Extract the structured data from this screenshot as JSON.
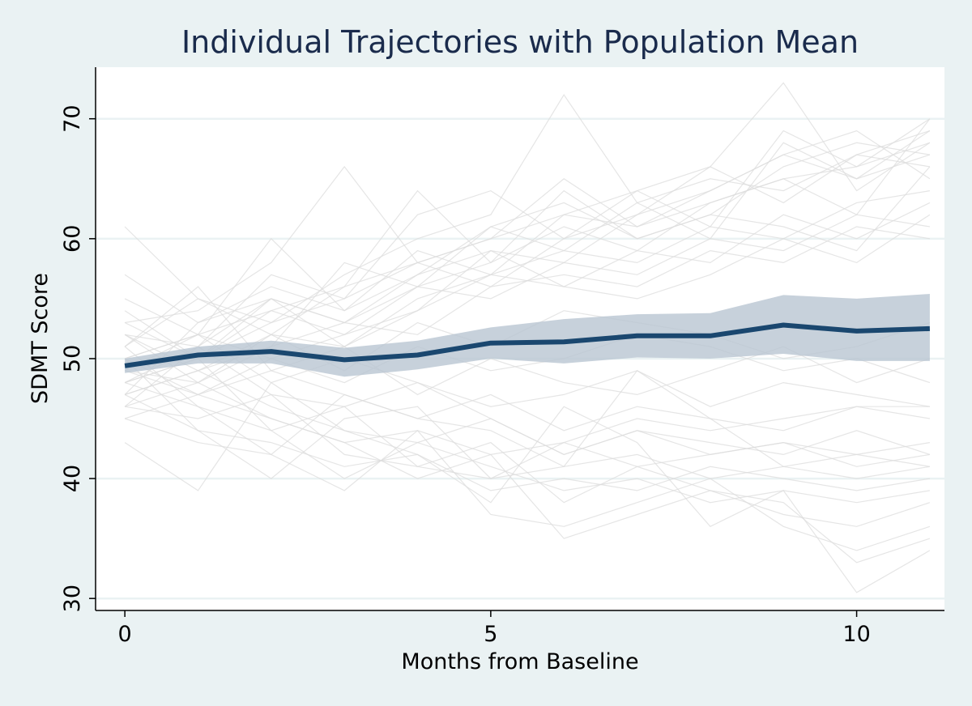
{
  "chart_data": {
    "type": "line",
    "title": "Individual Trajectories with Population Mean",
    "xlabel": "Months from Baseline",
    "ylabel": "SDMT Score",
    "xlim": [
      -0.4,
      11.2
    ],
    "ylim": [
      29.0,
      74.3
    ],
    "x_ticks": [
      0,
      5,
      10
    ],
    "y_ticks": [
      30,
      40,
      50,
      60,
      70
    ],
    "grid": "horizontal",
    "colors": {
      "background": "#eaf2f3",
      "plot_area": "#ffffff",
      "grid": "#eaf2f3",
      "individual": "#dcdcdc",
      "mean": "#1a476f",
      "ci_band": "#b9c6d2",
      "title": "#1a2b4c"
    },
    "x": [
      0,
      1,
      2,
      3,
      4,
      5,
      6,
      7,
      8,
      9,
      10,
      11
    ],
    "mean_series": {
      "values": [
        49.4,
        50.3,
        50.6,
        49.9,
        50.3,
        51.3,
        51.4,
        51.9,
        51.9,
        52.8,
        52.3,
        52.5
      ],
      "ci_lower": [
        48.8,
        49.6,
        49.6,
        48.5,
        49.1,
        50.0,
        49.6,
        50.1,
        50.0,
        50.4,
        49.8,
        49.8
      ],
      "ci_upper": [
        50.0,
        51.0,
        51.5,
        50.9,
        51.5,
        52.6,
        53.3,
        53.7,
        53.8,
        55.3,
        55.0,
        55.4
      ]
    },
    "individual_series": [
      {
        "values": [
          50,
          52,
          54,
          56,
          58,
          60,
          62,
          61,
          63,
          65,
          66,
          68
        ]
      },
      {
        "values": [
          48,
          50,
          55,
          53,
          57,
          59,
          58,
          62,
          64,
          67,
          65,
          69
        ]
      },
      {
        "values": [
          52,
          49,
          51,
          58,
          56,
          61,
          63,
          60,
          62,
          66,
          68,
          67
        ]
      },
      {
        "values": [
          47,
          53,
          56,
          54,
          59,
          57,
          62,
          64,
          61,
          69,
          66,
          70
        ]
      },
      {
        "values": [
          51,
          55,
          53,
          57,
          60,
          62,
          72,
          63,
          65,
          64,
          67,
          66
        ]
      },
      {
        "values": [
          46,
          51,
          57,
          55,
          62,
          64,
          60,
          62,
          66,
          73,
          64,
          68
        ]
      },
      {
        "values": [
          53,
          54,
          58,
          66,
          58,
          60,
          65,
          61,
          64,
          67,
          69,
          65
        ]
      },
      {
        "values": [
          49,
          48,
          52,
          56,
          64,
          58,
          61,
          59,
          63,
          65,
          62,
          70
        ]
      },
      {
        "values": [
          50,
          52,
          60,
          54,
          57,
          61,
          59,
          63,
          60,
          68,
          65,
          67
        ]
      },
      {
        "values": [
          48,
          50,
          53,
          55,
          58,
          56,
          60,
          64,
          66,
          63,
          67,
          69
        ]
      },
      {
        "values": [
          45,
          47,
          50,
          52,
          54,
          57,
          59,
          58,
          61,
          60,
          63,
          64
        ]
      },
      {
        "values": [
          52,
          51,
          55,
          53,
          56,
          58,
          64,
          60,
          62,
          61,
          59,
          66
        ]
      },
      {
        "values": [
          47,
          49,
          52,
          51,
          55,
          57,
          56,
          59,
          58,
          62,
          60,
          63
        ]
      },
      {
        "values": [
          53,
          50,
          54,
          52,
          56,
          55,
          58,
          57,
          60,
          59,
          62,
          61
        ]
      },
      {
        "values": [
          46,
          48,
          51,
          53,
          52,
          56,
          57,
          56,
          59,
          58,
          61,
          60
        ]
      },
      {
        "values": [
          57,
          53,
          55,
          51,
          54,
          59,
          56,
          55,
          57,
          60,
          58,
          62
        ]
      },
      {
        "values": [
          61,
          55,
          52,
          49,
          53,
          51,
          54,
          53,
          52,
          50,
          51,
          53
        ]
      },
      {
        "values": [
          49,
          52,
          50,
          48,
          51,
          49,
          50,
          52,
          51,
          49,
          50,
          48
        ]
      },
      {
        "values": [
          50,
          47,
          49,
          51,
          47,
          50,
          48,
          47,
          49,
          51,
          48,
          50
        ]
      },
      {
        "values": [
          48,
          51,
          47,
          46,
          48,
          46,
          47,
          49,
          46,
          48,
          47,
          46
        ]
      },
      {
        "values": [
          51,
          56,
          49,
          47,
          45,
          47,
          44,
          46,
          45,
          44,
          46,
          45
        ]
      },
      {
        "values": [
          47,
          49,
          46,
          44,
          43,
          45,
          42,
          44,
          43,
          42,
          44,
          42
        ]
      },
      {
        "values": [
          52,
          48,
          45,
          43,
          44,
          42,
          43,
          41,
          42,
          43,
          41,
          42
        ]
      },
      {
        "values": [
          46,
          45,
          47,
          42,
          41,
          40,
          41,
          42,
          40,
          41,
          40,
          41
        ]
      },
      {
        "values": [
          50,
          44,
          43,
          41,
          42,
          39,
          40,
          39,
          41,
          40,
          39,
          40
        ]
      },
      {
        "values": [
          48,
          46,
          44,
          40,
          43,
          41,
          39,
          40,
          38,
          39,
          38,
          39
        ]
      },
      {
        "values": [
          54,
          50,
          44,
          46,
          41,
          43,
          38,
          41,
          39,
          37,
          36,
          38
        ]
      },
      {
        "values": [
          45,
          43,
          42,
          39,
          44,
          37,
          36,
          38,
          40,
          36,
          34,
          36
        ]
      },
      {
        "values": [
          49,
          47,
          45,
          43,
          40,
          42,
          35,
          37,
          39,
          38,
          33,
          35
        ]
      },
      {
        "values": [
          43,
          39,
          48,
          44,
          42,
          38,
          46,
          43,
          36,
          39,
          30.5,
          34
        ]
      },
      {
        "values": [
          51,
          46,
          42,
          47,
          45,
          44,
          41,
          49,
          45,
          41,
          42,
          43
        ]
      },
      {
        "values": [
          47,
          44,
          40,
          45,
          46,
          40,
          43,
          45,
          44,
          45,
          46,
          46
        ]
      },
      {
        "values": [
          55,
          52,
          48,
          50,
          48,
          45,
          42,
          44,
          42,
          43,
          42,
          41
        ]
      }
    ]
  }
}
